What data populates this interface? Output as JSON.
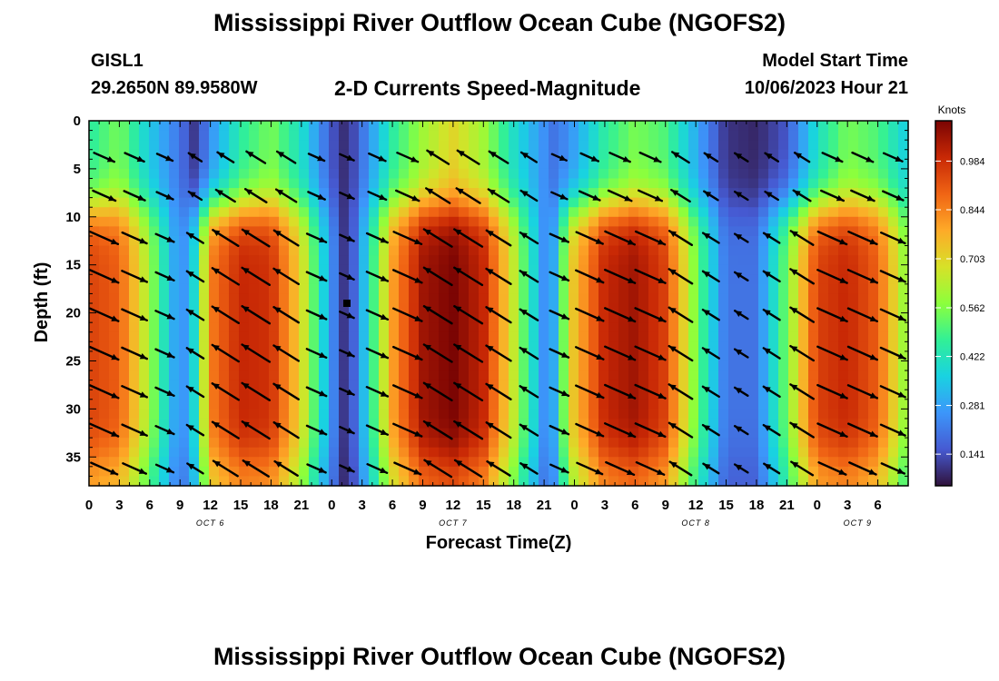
{
  "header": {
    "title": "Mississippi River Outflow Ocean Cube (NGOFS2)",
    "station_id": "GISL1",
    "station_coords": "29.2650N  89.9580W",
    "subtitle": "2-D Currents Speed-Magnitude",
    "model_start_label": "Model Start Time",
    "model_start_value": "10/06/2023 Hour 21"
  },
  "footer": {
    "title": "Mississippi River Outflow Ocean Cube (NGOFS2)"
  },
  "chart_data": {
    "type": "heatmap",
    "title": "2-D Currents Speed-Magnitude",
    "xlabel": "Forecast Time(Z)",
    "ylabel": "Depth (ft)",
    "x_hours_range": [
      0,
      81
    ],
    "ylim": [
      0,
      38
    ],
    "y_inverted": true,
    "x_tick_labels": [
      "0",
      "3",
      "6",
      "9",
      "12",
      "15",
      "18",
      "21",
      "0",
      "3",
      "6",
      "9",
      "12",
      "15",
      "18",
      "21",
      "0",
      "3",
      "6",
      "9",
      "12",
      "15",
      "18",
      "21",
      "0",
      "3",
      "6"
    ],
    "y_ticks": [
      0,
      5,
      10,
      15,
      20,
      25,
      30,
      35
    ],
    "date_labels": [
      {
        "label": "OCT 6",
        "hour": 12
      },
      {
        "label": "OCT 7",
        "hour": 36
      },
      {
        "label": "OCT 8",
        "hour": 60
      },
      {
        "label": "OCT 9",
        "hour": 76
      }
    ],
    "colorbar": {
      "title": "Knots",
      "ticks": [
        0.141,
        0.281,
        0.422,
        0.562,
        0.703,
        0.844,
        0.984
      ],
      "vmin": 0.05,
      "vmax": 1.1
    },
    "speed_profile": {
      "hours": [
        0,
        3,
        6,
        9,
        10.5,
        12,
        15,
        18,
        21,
        24,
        25.5,
        27,
        30,
        33,
        36,
        39,
        42,
        45,
        46,
        47.5,
        51,
        54,
        57,
        60,
        63,
        66,
        69,
        72,
        75,
        78,
        81
      ],
      "upper_speed": [
        0.45,
        0.55,
        0.35,
        0.2,
        0.1,
        0.25,
        0.45,
        0.55,
        0.4,
        0.15,
        0.08,
        0.2,
        0.45,
        0.6,
        0.7,
        0.6,
        0.4,
        0.25,
        0.2,
        0.25,
        0.45,
        0.55,
        0.5,
        0.3,
        0.1,
        0.08,
        0.15,
        0.4,
        0.55,
        0.5,
        0.35
      ],
      "lower_speed": [
        0.95,
        0.9,
        0.6,
        0.22,
        0.4,
        0.85,
        1.0,
        0.98,
        0.7,
        0.25,
        0.07,
        0.3,
        0.8,
        1.05,
        1.1,
        1.0,
        0.65,
        0.25,
        0.3,
        0.7,
        1.0,
        1.05,
        0.95,
        0.55,
        0.2,
        0.2,
        0.55,
        0.95,
        1.0,
        0.9,
        0.55
      ]
    },
    "marker": {
      "hour": 25.5,
      "depth": 19
    }
  }
}
